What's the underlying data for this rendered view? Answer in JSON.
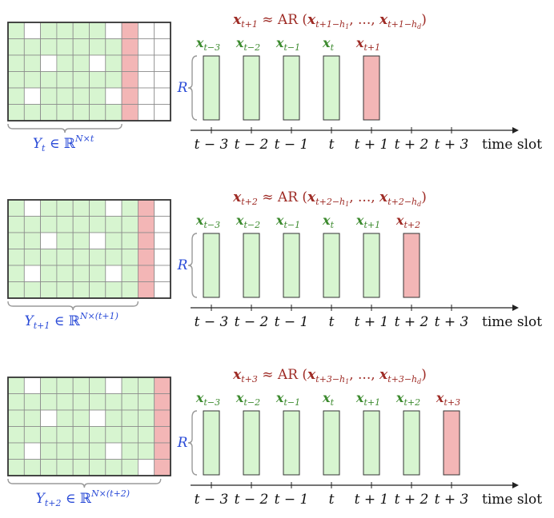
{
  "colors": {
    "observed_fill": "#d7f5d0",
    "missing_fill": "#ffffff",
    "forecast_fill": "#f3b6b6",
    "grid_line": "#8a8a8a",
    "frame": "#333333",
    "axis": "#222222",
    "text_blue": "#2a4bd7",
    "text_red": "#9e2b25",
    "text_green": "#3c8a2e",
    "text_black": "#111111",
    "brace": "#9a9a9a"
  },
  "axis_label": "time slot",
  "time_ticks": [
    "t − 3",
    "t − 2",
    "t − 1",
    "t",
    "t + 1",
    "t + 2",
    "t + 3"
  ],
  "panels": [
    {
      "equation": {
        "lhs_sub": "t+1",
        "rhs_first_sub": "t+1−h",
        "rhs_first_subsub": "1",
        "rhs_last_sub": "t+1−h",
        "rhs_last_subsub": "d"
      },
      "matrix_label": {
        "base": "Y",
        "sub": "t",
        "sup": "N×t"
      },
      "matrix": {
        "observed_cols": 7,
        "forecast_cols": 1,
        "empty_cols": 2,
        "missing": [
          [
            0,
            1
          ],
          [
            0,
            6
          ],
          [
            2,
            2
          ],
          [
            2,
            5
          ],
          [
            4,
            1
          ],
          [
            4,
            6
          ]
        ]
      },
      "r_label": "R",
      "bars": [
        {
          "sub": "t−3",
          "tick": 0,
          "kind": "observed"
        },
        {
          "sub": "t−2",
          "tick": 1,
          "kind": "observed"
        },
        {
          "sub": "t−1",
          "tick": 2,
          "kind": "observed"
        },
        {
          "sub": "t",
          "tick": 3,
          "kind": "observed"
        },
        {
          "sub": "t+1",
          "tick": 4,
          "kind": "forecast"
        }
      ]
    },
    {
      "equation": {
        "lhs_sub": "t+2",
        "rhs_first_sub": "t+2−h",
        "rhs_first_subsub": "1",
        "rhs_last_sub": "t+2−h",
        "rhs_last_subsub": "d"
      },
      "matrix_label": {
        "base": "Y",
        "sub": "t+1",
        "sup": "N×(t+1)"
      },
      "matrix": {
        "observed_cols": 8,
        "forecast_cols": 1,
        "empty_cols": 1,
        "missing": [
          [
            0,
            1
          ],
          [
            0,
            6
          ],
          [
            2,
            2
          ],
          [
            2,
            5
          ],
          [
            4,
            1
          ],
          [
            4,
            6
          ]
        ]
      },
      "r_label": "R",
      "bars": [
        {
          "sub": "t−3",
          "tick": 0,
          "kind": "observed"
        },
        {
          "sub": "t−2",
          "tick": 1,
          "kind": "observed"
        },
        {
          "sub": "t−1",
          "tick": 2,
          "kind": "observed"
        },
        {
          "sub": "t",
          "tick": 3,
          "kind": "observed"
        },
        {
          "sub": "t+1",
          "tick": 4,
          "kind": "observed"
        },
        {
          "sub": "t+2",
          "tick": 5,
          "kind": "forecast"
        }
      ]
    },
    {
      "equation": {
        "lhs_sub": "t+3",
        "rhs_first_sub": "t+3−h",
        "rhs_first_subsub": "1",
        "rhs_last_sub": "t+3−h",
        "rhs_last_subsub": "d"
      },
      "matrix_label": {
        "base": "Y",
        "sub": "t+2",
        "sup": "N×(t+2)"
      },
      "matrix": {
        "observed_cols": 9,
        "forecast_cols": 1,
        "empty_cols": 0,
        "missing": [
          [
            0,
            1
          ],
          [
            0,
            6
          ],
          [
            2,
            2
          ],
          [
            2,
            5
          ],
          [
            4,
            1
          ],
          [
            4,
            6
          ],
          [
            5,
            8
          ]
        ]
      },
      "r_label": "R",
      "bars": [
        {
          "sub": "t−3",
          "tick": 0,
          "kind": "observed"
        },
        {
          "sub": "t−2",
          "tick": 1,
          "kind": "observed"
        },
        {
          "sub": "t−1",
          "tick": 2,
          "kind": "observed"
        },
        {
          "sub": "t",
          "tick": 3,
          "kind": "observed"
        },
        {
          "sub": "t+1",
          "tick": 4,
          "kind": "observed"
        },
        {
          "sub": "t+2",
          "tick": 5,
          "kind": "observed"
        },
        {
          "sub": "t+3",
          "tick": 6,
          "kind": "forecast"
        }
      ]
    }
  ]
}
